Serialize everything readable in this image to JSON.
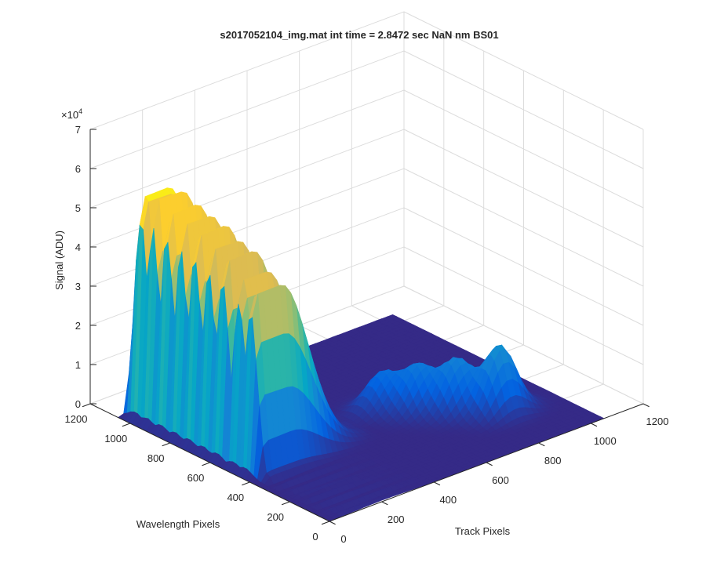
{
  "chart_data": {
    "type": "surface",
    "title": "s2017052104_img.mat int time = 2.8472 sec  NaN nm BS01",
    "xlabel": "Track Pixels",
    "ylabel": "Wavelength Pixels",
    "zlabel": "Signal (ADU)",
    "z_multiplier": "×10",
    "z_exponent": "4",
    "xlim": [
      0,
      1200
    ],
    "ylim": [
      0,
      1200
    ],
    "zlim": [
      0,
      70000
    ],
    "x_ticks": [
      "0",
      "200",
      "400",
      "600",
      "800",
      "1000",
      "1200"
    ],
    "y_ticks": [
      "0",
      "200",
      "400",
      "600",
      "800",
      "1000",
      "1200"
    ],
    "z_ticks": [
      "0",
      "1",
      "2",
      "3",
      "4",
      "5",
      "6",
      "7"
    ],
    "grid": true,
    "colormap": [
      "#352a87",
      "#0363e1",
      "#1485d4",
      "#06a7c6",
      "#38b99e",
      "#92bf73",
      "#d9ba56",
      "#fcce2e",
      "#f9fb0e"
    ],
    "surface_extent": {
      "track": [
        0,
        1050
      ],
      "wavelength": [
        0,
        1060
      ]
    },
    "series": [
      {
        "wavelength_center": 1000,
        "peak": 58000
      },
      {
        "wavelength_center": 940,
        "peak": 57000
      },
      {
        "wavelength_center": 870,
        "peak": 56000
      },
      {
        "wavelength_center": 800,
        "peak": 55000
      },
      {
        "wavelength_center": 730,
        "peak": 54000
      },
      {
        "wavelength_center": 660,
        "peak": 53000
      },
      {
        "wavelength_center": 590,
        "peak": 51000
      },
      {
        "wavelength_center": 510,
        "peak": 48000
      },
      {
        "wavelength_center": 450,
        "peak": 46000
      }
    ],
    "secondary_bumps": [
      {
        "track_center": 850,
        "wavelength_center": 260,
        "peak": 17000
      },
      {
        "track_center": 760,
        "wavelength_center": 360,
        "peak": 13000
      },
      {
        "track_center": 680,
        "wavelength_center": 450,
        "peak": 11000
      },
      {
        "track_center": 610,
        "wavelength_center": 540,
        "peak": 9000
      }
    ]
  }
}
